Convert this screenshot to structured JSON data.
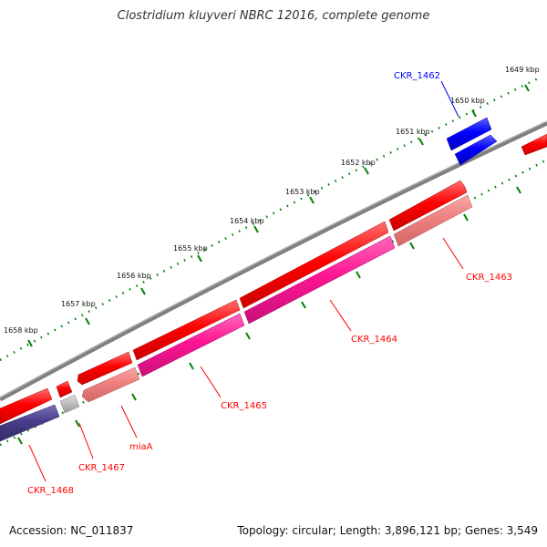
{
  "title": "Clostridium kluyveri NBRC 12016, complete genome",
  "footer": {
    "accession": "Accession: NC_011837",
    "topology": "Topology: circular; Length: 3,896,121 bp; Genes: 3,549"
  },
  "kbp_labels": [
    "1649 kbp",
    "1650 kbp",
    "1651 kbp",
    "1652 kbp",
    "1653 kbp",
    "1654 kbp",
    "1655 kbp",
    "1656 kbp",
    "1657 kbp",
    "1658 kbp"
  ],
  "gene_labels": {
    "ckr_1462": "CKR_1462",
    "ckr_1463": "CKR_1463",
    "ckr_1464": "CKR_1464",
    "ckr_1465": "CKR_1465",
    "miaA": "miaA",
    "ckr_1467": "CKR_1467",
    "ckr_1468": "CKR_1468"
  },
  "colors": {
    "backbone": "#808080",
    "gene_red": "#ff0000",
    "gene_pink": "#ff1493",
    "gene_light_red": "#f08080",
    "gene_blue": "#0000ff",
    "gene_slate": "#483d8b",
    "gene_gray": "#bbbbbb",
    "tick_green": "#008000",
    "label_red": "#ff0000",
    "label_blue": "#0000ff"
  }
}
